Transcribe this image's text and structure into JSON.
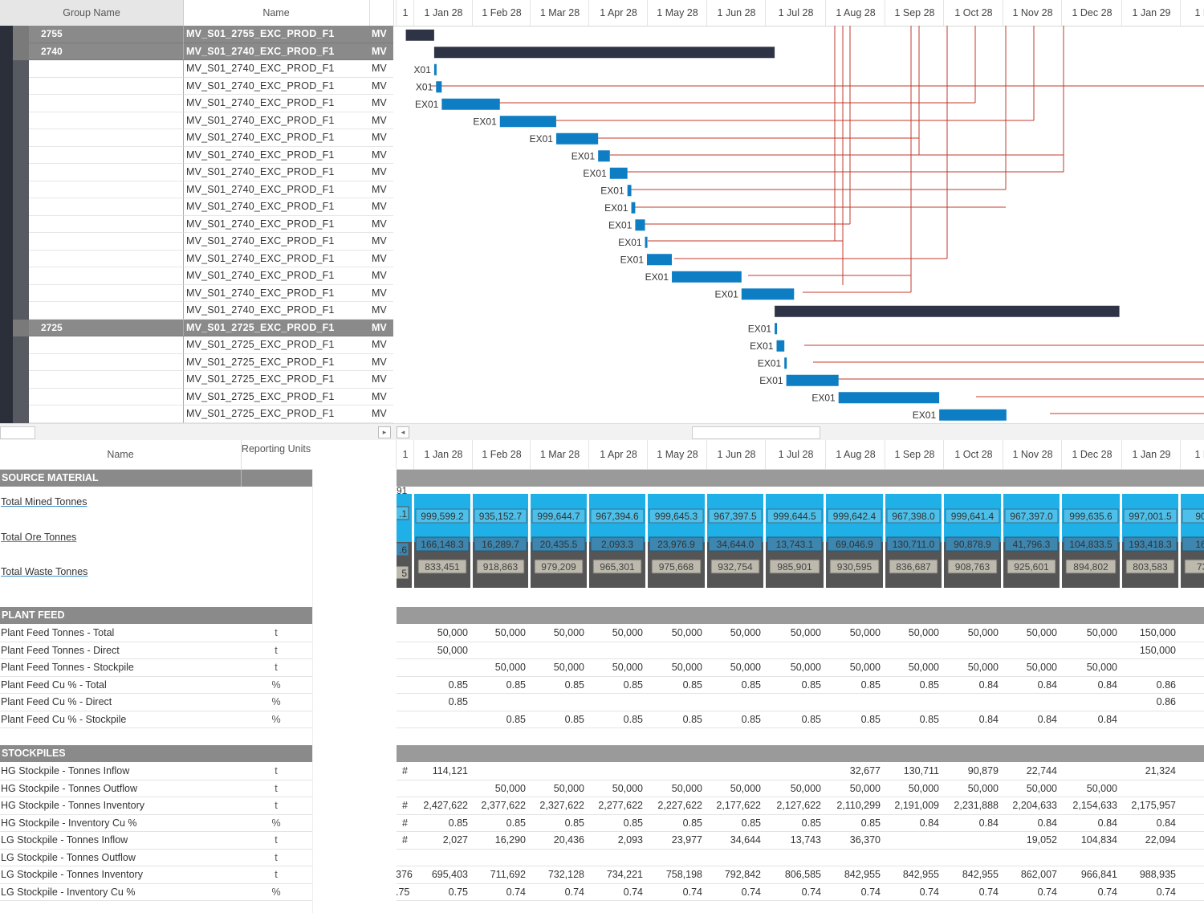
{
  "colors": {
    "bar_dark": "#2e3445",
    "bar_blue": "#0e7ec4",
    "link_red": "#c0392b",
    "group_grey": "#8a8a8a",
    "cyan": "#1fb0e8"
  },
  "top_header": {
    "group_name": "Group Name",
    "name": "Name"
  },
  "timeline_headers": [
    "1",
    "1 Jan 28",
    "1 Feb 28",
    "1 Mar 28",
    "1 Apr 28",
    "1 May 28",
    "1 Jun 28",
    "1 Jul 28",
    "1 Aug 28",
    "1 Sep 28",
    "1 Oct 28",
    "1 Nov 28",
    "1 Dec 28",
    "1 Jan 29",
    "1 Fe"
  ],
  "gantt_rows": [
    {
      "group": "2755",
      "name": "MV_S01_2755_EXC_PROD_F1",
      "type": "MV",
      "is_group": true
    },
    {
      "group": "2740",
      "name": "MV_S01_2740_EXC_PROD_F1",
      "type": "MV",
      "is_group": true
    },
    {
      "group": "",
      "name": "MV_S01_2740_EXC_PROD_F1",
      "type": "MV",
      "is_group": false
    },
    {
      "group": "",
      "name": "MV_S01_2740_EXC_PROD_F1",
      "type": "MV",
      "is_group": false
    },
    {
      "group": "",
      "name": "MV_S01_2740_EXC_PROD_F1",
      "type": "MV",
      "is_group": false
    },
    {
      "group": "",
      "name": "MV_S01_2740_EXC_PROD_F1",
      "type": "MV",
      "is_group": false
    },
    {
      "group": "",
      "name": "MV_S01_2740_EXC_PROD_F1",
      "type": "MV",
      "is_group": false
    },
    {
      "group": "",
      "name": "MV_S01_2740_EXC_PROD_F1",
      "type": "MV",
      "is_group": false
    },
    {
      "group": "",
      "name": "MV_S01_2740_EXC_PROD_F1",
      "type": "MV",
      "is_group": false
    },
    {
      "group": "",
      "name": "MV_S01_2740_EXC_PROD_F1",
      "type": "MV",
      "is_group": false
    },
    {
      "group": "",
      "name": "MV_S01_2740_EXC_PROD_F1",
      "type": "MV",
      "is_group": false
    },
    {
      "group": "",
      "name": "MV_S01_2740_EXC_PROD_F1",
      "type": "MV",
      "is_group": false
    },
    {
      "group": "",
      "name": "MV_S01_2740_EXC_PROD_F1",
      "type": "MV",
      "is_group": false
    },
    {
      "group": "",
      "name": "MV_S01_2740_EXC_PROD_F1",
      "type": "MV",
      "is_group": false
    },
    {
      "group": "",
      "name": "MV_S01_2740_EXC_PROD_F1",
      "type": "MV",
      "is_group": false
    },
    {
      "group": "",
      "name": "MV_S01_2740_EXC_PROD_F1",
      "type": "MV",
      "is_group": false
    },
    {
      "group": "",
      "name": "MV_S01_2740_EXC_PROD_F1",
      "type": "MV",
      "is_group": false
    },
    {
      "group": "2725",
      "name": "MV_S01_2725_EXC_PROD_F1",
      "type": "MV",
      "is_group": true
    },
    {
      "group": "",
      "name": "MV_S01_2725_EXC_PROD_F1",
      "type": "MV",
      "is_group": false
    },
    {
      "group": "",
      "name": "MV_S01_2725_EXC_PROD_F1",
      "type": "MV",
      "is_group": false
    },
    {
      "group": "",
      "name": "MV_S01_2725_EXC_PROD_F1",
      "type": "MV",
      "is_group": false
    },
    {
      "group": "",
      "name": "MV_S01_2725_EXC_PROD_F1",
      "type": "MV",
      "is_group": false
    },
    {
      "group": "",
      "name": "MV_S01_2725_EXC_PROD_F1",
      "type": "MV",
      "is_group": false
    },
    {
      "group": "",
      "name": "MV_S01_2725_EXC_PROD_F1",
      "type": "MV",
      "is_group": false
    }
  ],
  "gantt_bars": [
    {
      "row": 0,
      "start": "2027-12-28",
      "end": "2028-01-12",
      "style": "dark",
      "label": ""
    },
    {
      "row": 1,
      "start": "2028-01-12",
      "end": "2028-07-06",
      "style": "dark",
      "label": ""
    },
    {
      "row": 2,
      "start": "2028-01-12",
      "end": "2028-01-13",
      "style": "blue",
      "label": "X01"
    },
    {
      "row": 3,
      "start": "2028-01-13",
      "end": "2028-01-16",
      "style": "blue",
      "label": "X01"
    },
    {
      "row": 4,
      "start": "2028-01-16",
      "end": "2028-02-15",
      "style": "blue",
      "label": "EX01"
    },
    {
      "row": 5,
      "start": "2028-02-15",
      "end": "2028-03-15",
      "style": "blue",
      "label": "EX01"
    },
    {
      "row": 6,
      "start": "2028-03-15",
      "end": "2028-04-06",
      "style": "blue",
      "label": "EX01"
    },
    {
      "row": 7,
      "start": "2028-04-06",
      "end": "2028-04-12",
      "style": "blue",
      "label": "EX01"
    },
    {
      "row": 8,
      "start": "2028-04-12",
      "end": "2028-04-21",
      "style": "blue",
      "label": "EX01"
    },
    {
      "row": 9,
      "start": "2028-04-21",
      "end": "2028-04-23",
      "style": "blue",
      "label": "EX01"
    },
    {
      "row": 10,
      "start": "2028-04-23",
      "end": "2028-04-25",
      "style": "blue",
      "label": "EX01"
    },
    {
      "row": 11,
      "start": "2028-04-25",
      "end": "2028-04-30",
      "style": "blue",
      "label": "EX01"
    },
    {
      "row": 12,
      "start": "2028-04-30",
      "end": "2028-05-01",
      "style": "blue",
      "label": "EX01"
    },
    {
      "row": 13,
      "start": "2028-05-01",
      "end": "2028-05-14",
      "style": "blue",
      "label": "EX01"
    },
    {
      "row": 14,
      "start": "2028-05-14",
      "end": "2028-06-19",
      "style": "blue",
      "label": "EX01"
    },
    {
      "row": 15,
      "start": "2028-06-19",
      "end": "2028-07-16",
      "style": "blue",
      "label": "EX01"
    },
    {
      "row": 16,
      "start": "2028-07-06",
      "end": "2028-12-31",
      "style": "dark",
      "label": ""
    },
    {
      "row": 17,
      "start": "2028-07-06",
      "end": "2028-07-07",
      "style": "blue",
      "label": "EX01"
    },
    {
      "row": 18,
      "start": "2028-07-07",
      "end": "2028-07-11",
      "style": "blue",
      "label": "EX01"
    },
    {
      "row": 19,
      "start": "2028-07-11",
      "end": "2028-07-12",
      "style": "blue",
      "label": "EX01"
    },
    {
      "row": 20,
      "start": "2028-07-12",
      "end": "2028-08-08",
      "style": "blue",
      "label": "EX01"
    },
    {
      "row": 21,
      "start": "2028-08-08",
      "end": "2028-09-29",
      "style": "blue",
      "label": "EX01"
    },
    {
      "row": 22,
      "start": "2028-09-29",
      "end": "2028-11-03",
      "style": "blue",
      "label": "EX01"
    }
  ],
  "bottom_header": {
    "name": "Name",
    "reporting_units": "Reporting Units"
  },
  "sections": {
    "source_material": "SOURCE MATERIAL",
    "plant_feed": "PLANT FEED",
    "stockpiles": "STOCKPILES"
  },
  "source_metrics": [
    "Total Mined Tonnes",
    "Total Ore Tonnes",
    "Total Waste Tonnes"
  ],
  "source_chart": {
    "partial_label": "91",
    "first_partial": [
      ".1",
      ".6",
      "5"
    ],
    "mined": [
      "999,599.2",
      "935,152.7",
      "999,644.7",
      "967,394.6",
      "999,645.3",
      "967,397.5",
      "999,644.5",
      "999,642.4",
      "967,398.0",
      "999,641.4",
      "967,397.0",
      "999,635.6",
      "997,001.5",
      "900,"
    ],
    "ore": [
      "166,148.3",
      "16,289.7",
      "20,435.5",
      "2,093.3",
      "23,976.9",
      "34,644.0",
      "13,743.1",
      "69,046.9",
      "130,711.0",
      "90,878.9",
      "41,796.3",
      "104,833.5",
      "193,418.3",
      "166,"
    ],
    "waste": [
      "833,451",
      "918,863",
      "979,209",
      "965,301",
      "975,668",
      "932,754",
      "985,901",
      "930,595",
      "836,687",
      "908,763",
      "925,601",
      "894,802",
      "803,583",
      "733"
    ]
  },
  "plant_feed_rows": [
    {
      "label": "Plant Feed Tonnes - Total",
      "unit": "t",
      "values": [
        "",
        "50,000",
        "50,000",
        "50,000",
        "50,000",
        "50,000",
        "50,000",
        "50,000",
        "50,000",
        "50,000",
        "50,000",
        "50,000",
        "50,000",
        "150,000",
        "15"
      ]
    },
    {
      "label": "Plant Feed Tonnes - Direct",
      "unit": "t",
      "values": [
        "",
        "50,000",
        "",
        "",
        "",
        "",
        "",
        "",
        "",
        "",
        "",
        "",
        "",
        "150,000",
        "15"
      ]
    },
    {
      "label": "Plant Feed Tonnes - Stockpile",
      "unit": "t",
      "values": [
        "",
        "",
        "50,000",
        "50,000",
        "50,000",
        "50,000",
        "50,000",
        "50,000",
        "50,000",
        "50,000",
        "50,000",
        "50,000",
        "50,000",
        "",
        ""
      ]
    },
    {
      "label": "Plant Feed Cu % - Total",
      "unit": "%",
      "values": [
        "",
        "0.85",
        "0.85",
        "0.85",
        "0.85",
        "0.85",
        "0.85",
        "0.85",
        "0.85",
        "0.85",
        "0.84",
        "0.84",
        "0.84",
        "0.86",
        ""
      ]
    },
    {
      "label": "Plant Feed Cu % - Direct",
      "unit": "%",
      "values": [
        "",
        "0.85",
        "",
        "",
        "",
        "",
        "",
        "",
        "",
        "",
        "",
        "",
        "",
        "0.86",
        ""
      ]
    },
    {
      "label": "Plant Feed Cu % - Stockpile",
      "unit": "%",
      "values": [
        "",
        "",
        "0.85",
        "0.85",
        "0.85",
        "0.85",
        "0.85",
        "0.85",
        "0.85",
        "0.85",
        "0.84",
        "0.84",
        "0.84",
        "",
        ""
      ]
    }
  ],
  "stockpile_rows": [
    {
      "label": "HG Stockpile - Tonnes Inflow",
      "unit": "t",
      "values": [
        "#",
        "114,121",
        "",
        "",
        "",
        "",
        "",
        "",
        "32,677",
        "130,711",
        "90,879",
        "22,744",
        "",
        "21,324",
        "1"
      ]
    },
    {
      "label": "HG Stockpile - Tonnes Outflow",
      "unit": "t",
      "values": [
        "",
        "",
        "50,000",
        "50,000",
        "50,000",
        "50,000",
        "50,000",
        "50,000",
        "50,000",
        "50,000",
        "50,000",
        "50,000",
        "50,000",
        "",
        ""
      ]
    },
    {
      "label": "HG Stockpile - Tonnes Inventory",
      "unit": "t",
      "values": [
        "#",
        "2,427,622",
        "2,377,622",
        "2,327,622",
        "2,277,622",
        "2,227,622",
        "2,177,622",
        "2,127,622",
        "2,110,299",
        "2,191,009",
        "2,231,888",
        "2,204,633",
        "2,154,633",
        "2,175,957",
        "2,19"
      ]
    },
    {
      "label": "HG Stockpile - Inventory Cu %",
      "unit": "%",
      "values": [
        "#",
        "0.85",
        "0.85",
        "0.85",
        "0.85",
        "0.85",
        "0.85",
        "0.85",
        "0.85",
        "0.84",
        "0.84",
        "0.84",
        "0.84",
        "0.84",
        ""
      ]
    },
    {
      "label": "LG Stockpile - Tonnes Inflow",
      "unit": "t",
      "values": [
        "#",
        "2,027",
        "16,290",
        "20,436",
        "2,093",
        "23,977",
        "34,644",
        "13,743",
        "36,370",
        "",
        "",
        "19,052",
        "104,834",
        "22,094",
        ""
      ]
    },
    {
      "label": "LG Stockpile - Tonnes Outflow",
      "unit": "t",
      "values": [
        "",
        "",
        "",
        "",
        "",
        "",
        "",
        "",
        "",
        "",
        "",
        "",
        "",
        "",
        ""
      ]
    },
    {
      "label": "LG Stockpile - Tonnes Inventory",
      "unit": "t",
      "values": [
        "376",
        "695,403",
        "711,692",
        "732,128",
        "734,221",
        "758,198",
        "792,842",
        "806,585",
        "842,955",
        "842,955",
        "842,955",
        "862,007",
        "966,841",
        "988,935",
        "98"
      ]
    },
    {
      "label": "LG Stockpile - Inventory Cu %",
      "unit": "%",
      "values": [
        ".75",
        "0.75",
        "0.74",
        "0.74",
        "0.74",
        "0.74",
        "0.74",
        "0.74",
        "0.74",
        "0.74",
        "0.74",
        "0.74",
        "0.74",
        "0.74",
        ""
      ]
    }
  ]
}
